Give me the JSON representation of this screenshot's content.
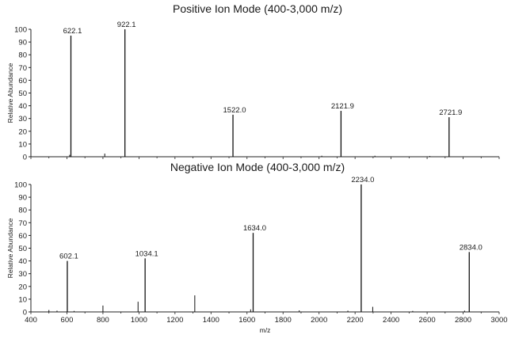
{
  "chart_data": [
    {
      "type": "line",
      "title": "Positive Ion Mode (400-3,000 m/z)",
      "ylabel": "Relative Abundance",
      "xlabel": "",
      "xlim": [
        400,
        3000
      ],
      "ylim": [
        0,
        100
      ],
      "yticks": [
        0,
        10,
        20,
        30,
        40,
        50,
        60,
        70,
        80,
        90,
        100
      ],
      "grid": false,
      "peaks": [
        {
          "x": 622.1,
          "y": 95,
          "label": "622.1"
        },
        {
          "x": 922.1,
          "y": 100,
          "label": "922.1"
        },
        {
          "x": 1522.0,
          "y": 33,
          "label": "1522.0"
        },
        {
          "x": 2121.9,
          "y": 36,
          "label": "2121.9"
        },
        {
          "x": 2721.9,
          "y": 31,
          "label": "2721.9"
        }
      ],
      "minor_peaks": [
        {
          "x": 615,
          "y": 1.5
        },
        {
          "x": 810,
          "y": 2.5
        },
        {
          "x": 2015,
          "y": 0.8
        },
        {
          "x": 2310,
          "y": 0.8
        },
        {
          "x": 2615,
          "y": 0.6
        }
      ]
    },
    {
      "type": "line",
      "title": "Negative Ion Mode (400-3,000 m/z)",
      "ylabel": "Relative Abundance",
      "xlabel": "m/z",
      "xlim": [
        400,
        3000
      ],
      "ylim": [
        0,
        100
      ],
      "yticks": [
        0,
        10,
        20,
        30,
        40,
        50,
        60,
        70,
        80,
        90,
        100
      ],
      "xticks": [
        400,
        600,
        800,
        1000,
        1200,
        1400,
        1600,
        1800,
        2000,
        2200,
        2400,
        2600,
        2800,
        3000
      ],
      "grid": false,
      "peaks": [
        {
          "x": 602.1,
          "y": 40,
          "label": "602.1"
        },
        {
          "x": 1034.1,
          "y": 42,
          "label": "1034.1"
        },
        {
          "x": 1634.0,
          "y": 62,
          "label": "1634.0"
        },
        {
          "x": 2234.0,
          "y": 100,
          "label": "2234.0"
        },
        {
          "x": 2834.0,
          "y": 47,
          "label": "2834.0"
        }
      ],
      "minor_peaks": [
        {
          "x": 500,
          "y": 1.5
        },
        {
          "x": 545,
          "y": 1.0
        },
        {
          "x": 640,
          "y": 0.8
        },
        {
          "x": 800,
          "y": 5
        },
        {
          "x": 995,
          "y": 8
        },
        {
          "x": 1310,
          "y": 13
        },
        {
          "x": 1620,
          "y": 2
        },
        {
          "x": 1890,
          "y": 1.2
        },
        {
          "x": 2160,
          "y": 1
        },
        {
          "x": 2298,
          "y": 4
        },
        {
          "x": 2520,
          "y": 0.8
        },
        {
          "x": 2808,
          "y": 1
        }
      ]
    }
  ]
}
